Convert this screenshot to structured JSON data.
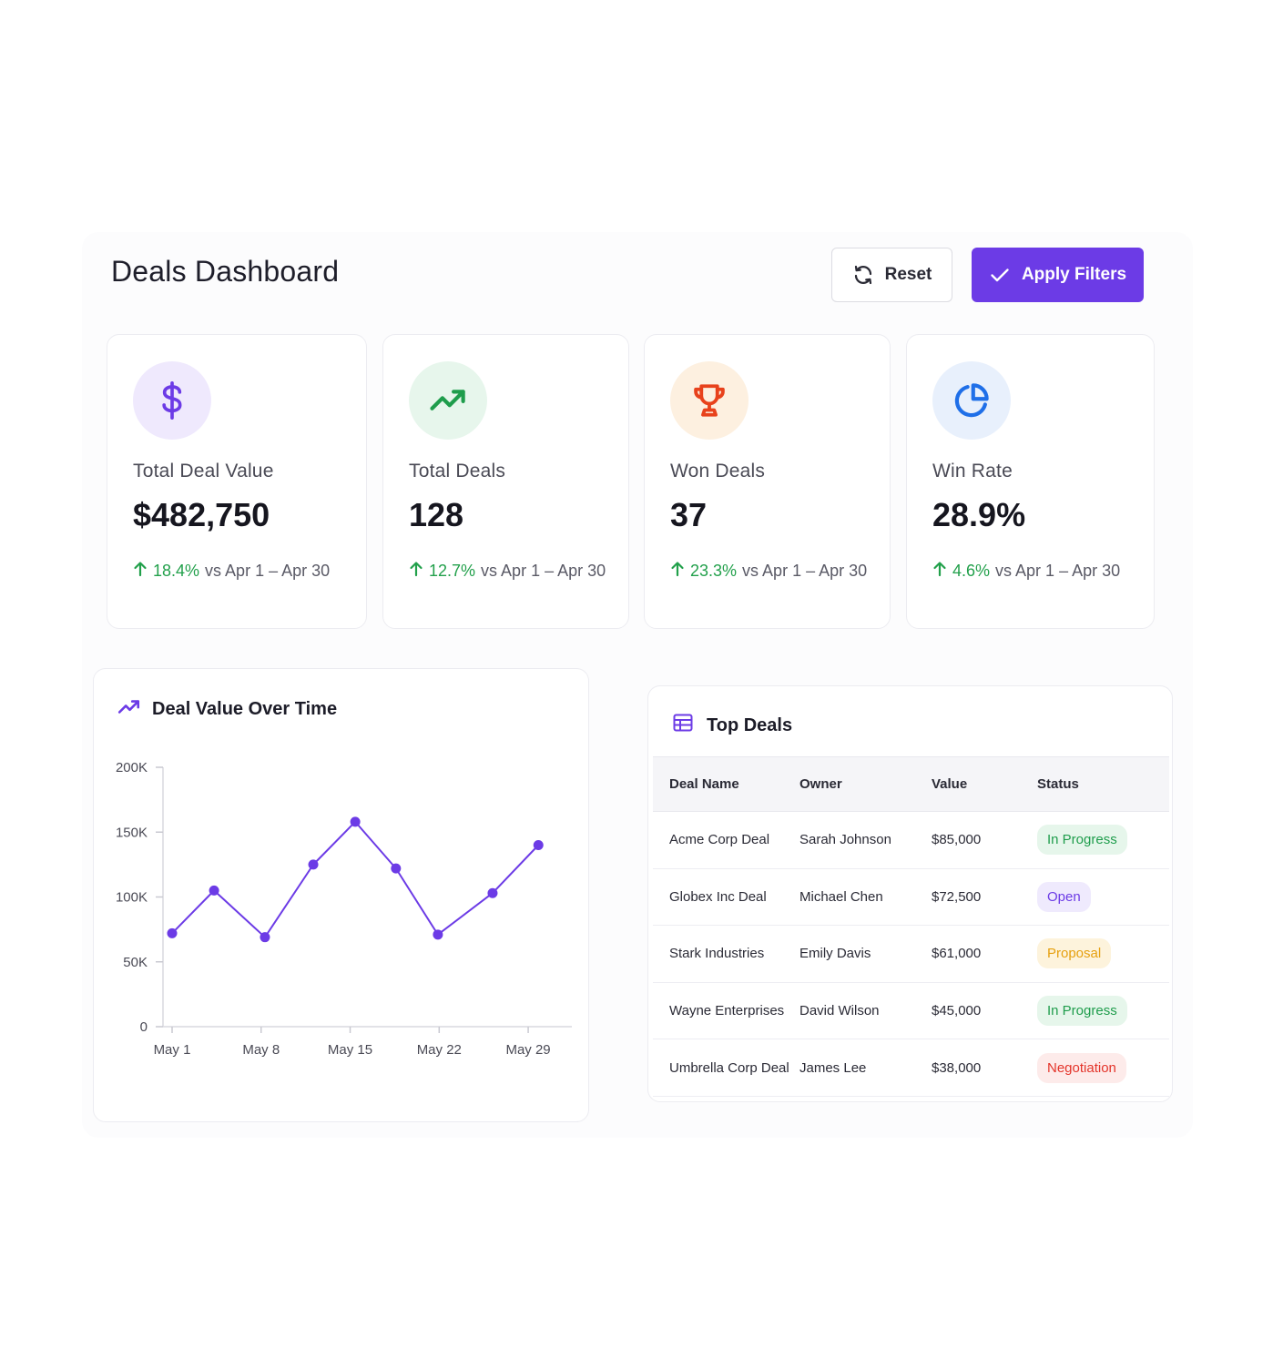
{
  "header": {
    "title": "Deals Dashboard",
    "reset_label": "Reset",
    "apply_label": "Apply Filters"
  },
  "kpis": [
    {
      "label": "Total Deal Value",
      "value": "$482,750",
      "change": "18.4%",
      "period": "vs Apr 1 – Apr 30",
      "icon": "dollar-icon",
      "icon_color": "#6c3be6",
      "icon_bg": "#efe9fd"
    },
    {
      "label": "Total Deals",
      "value": "128",
      "change": "12.7%",
      "period": "vs Apr 1 – Apr 30",
      "icon": "trending-up-icon",
      "icon_color": "#1f9d4c",
      "icon_bg": "#e7f6ec"
    },
    {
      "label": "Won Deals",
      "value": "37",
      "change": "23.3%",
      "period": "vs Apr 1 – Apr 30",
      "icon": "trophy-icon",
      "icon_color": "#e8421c",
      "icon_bg": "#fdf0e0"
    },
    {
      "label": "Win Rate",
      "value": "28.9%",
      "change": "4.6%",
      "period": "vs Apr 1 – Apr 30",
      "icon": "pie-chart-icon",
      "icon_color": "#1f6fe8",
      "icon_bg": "#e8f0fc"
    }
  ],
  "chart_title": "Deal Value Over Time",
  "chart_data": {
    "type": "line",
    "title": "Deal Value Over Time",
    "xlabel": "",
    "ylabel": "",
    "x_ticks": [
      "May 1",
      "May 8",
      "May 15",
      "May 22",
      "May 29"
    ],
    "y_ticks": [
      "0",
      "50K",
      "100K",
      "150K",
      "200K"
    ],
    "ylim": [
      0,
      200000
    ],
    "xlim": [
      0,
      30
    ],
    "grid": false,
    "color": "#6c3be6",
    "series": [
      {
        "x": [
          0,
          3.3,
          7.3,
          11.1,
          14.4,
          17.6,
          20.9,
          25.2,
          28.8
        ],
        "values": [
          72000,
          105000,
          69000,
          125000,
          158000,
          122000,
          71000,
          103000,
          140000
        ]
      }
    ]
  },
  "table": {
    "title": "Top Deals",
    "columns": [
      "Deal Name",
      "Owner",
      "Value",
      "Status"
    ],
    "rows": [
      {
        "name": "Acme Corp Deal",
        "owner": "Sarah Johnson",
        "value": "$85,000",
        "status": "In Progress",
        "status_color": "#1f9d4c",
        "status_bg": "#e6f6eb"
      },
      {
        "name": "Globex Inc Deal",
        "owner": "Michael Chen",
        "value": "$72,500",
        "status": "Open",
        "status_color": "#6c3be6",
        "status_bg": "#efeafd"
      },
      {
        "name": "Stark Industries",
        "owner": "Emily Davis",
        "value": "$61,000",
        "status": "Proposal",
        "status_color": "#e6a00f",
        "status_bg": "#fdf3dc"
      },
      {
        "name": "Wayne Enterprises",
        "owner": "David Wilson",
        "value": "$45,000",
        "status": "In Progress",
        "status_color": "#1f9d4c",
        "status_bg": "#e6f6eb"
      },
      {
        "name": "Umbrella Corp Deal",
        "owner": "James Lee",
        "value": "$38,000",
        "status": "Negotiation",
        "status_color": "#e4342a",
        "status_bg": "#fdebea"
      }
    ]
  }
}
